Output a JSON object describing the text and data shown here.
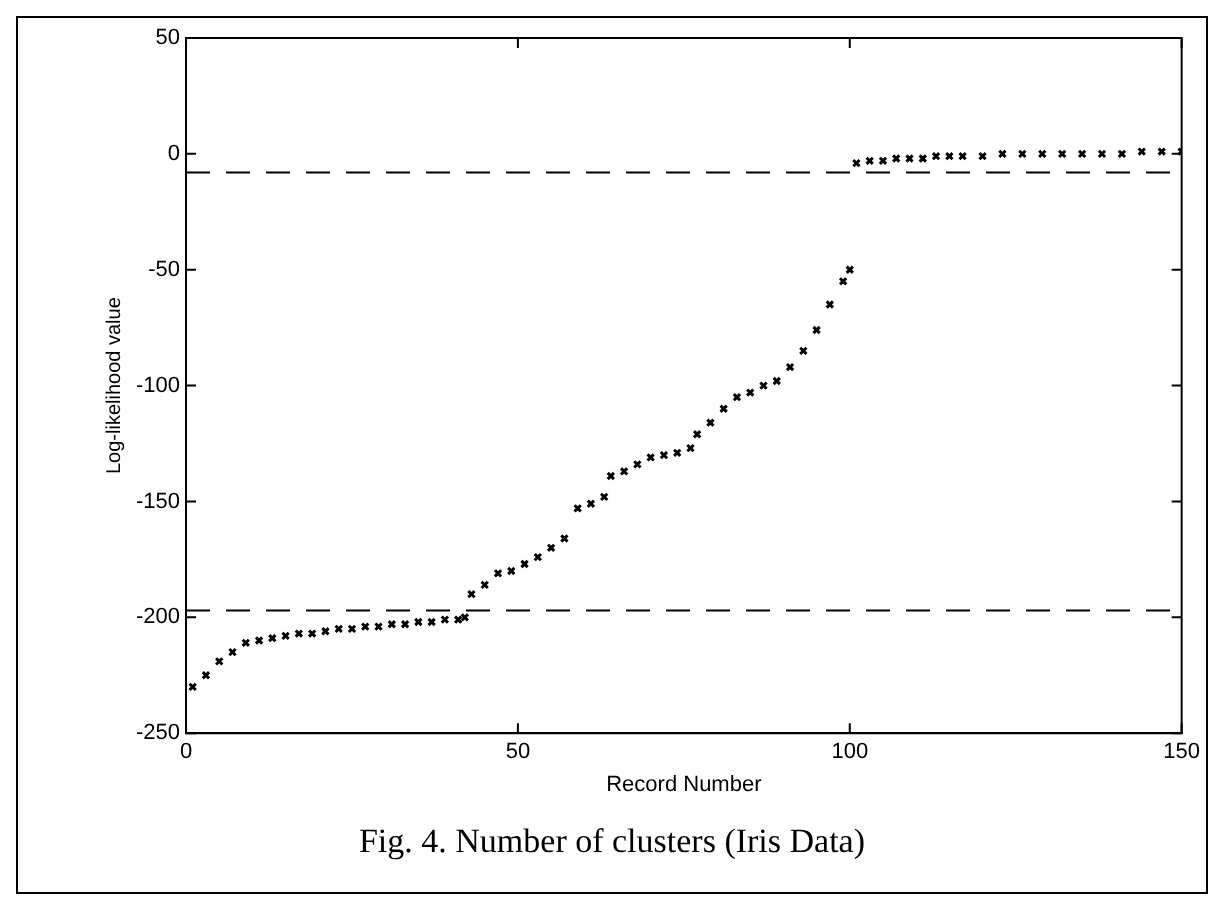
{
  "chart_data": {
    "type": "scatter",
    "xlabel": "Record Number",
    "ylabel": "Log-likelihood value",
    "annotations": [
      "Fig. 4. Number of clusters (Iris Data)"
    ],
    "xlim": [
      0,
      150
    ],
    "xticks": [
      0,
      50,
      100,
      150
    ],
    "ylim": [
      -250,
      50
    ],
    "yticks": [
      -250,
      -200,
      -150,
      -100,
      -50,
      0,
      50
    ],
    "grid": false,
    "legend": false,
    "marker": "cross",
    "ref_lines": [
      {
        "axis": "y",
        "value": -8,
        "color": "#000000",
        "line_style": "dashed"
      },
      {
        "axis": "y",
        "value": -197,
        "color": "#000000",
        "line_style": "dashed"
      }
    ],
    "series": [
      {
        "color": "#000000",
        "x": [
          1,
          3,
          5,
          7,
          9,
          11,
          13,
          15,
          17,
          19,
          21,
          23,
          25,
          27,
          29,
          31,
          33,
          35,
          37,
          39,
          41,
          42,
          43,
          45,
          47,
          49,
          51,
          53,
          55,
          57,
          59,
          61,
          63,
          64,
          66,
          68,
          70,
          72,
          74,
          76,
          77,
          79,
          81,
          83,
          85,
          87,
          89,
          91,
          93,
          95,
          97,
          99,
          100,
          101,
          103,
          105,
          107,
          109,
          111,
          113,
          115,
          117,
          120,
          123,
          126,
          129,
          132,
          135,
          138,
          141,
          144,
          147,
          150
        ],
        "values": [
          -230,
          -225,
          -219,
          -215,
          -211,
          -210,
          -209,
          -208,
          -207,
          -207,
          -206,
          -205,
          -205,
          -204,
          -204,
          -203,
          -203,
          -202,
          -202,
          -201,
          -201,
          -200,
          -190,
          -186,
          -181,
          -180,
          -177,
          -174,
          -170,
          -166,
          -153,
          -151,
          -148,
          -139,
          -137,
          -134,
          -131,
          -130,
          -129,
          -127,
          -121,
          -116,
          -110,
          -105,
          -103,
          -100,
          -98,
          -92,
          -85,
          -76,
          -65,
          -55,
          -50,
          -4,
          -3,
          -3,
          -2,
          -2,
          -2,
          -1,
          -1,
          -1,
          -1,
          0,
          0,
          0,
          0,
          0,
          0,
          0,
          1,
          1,
          1
        ]
      }
    ]
  }
}
